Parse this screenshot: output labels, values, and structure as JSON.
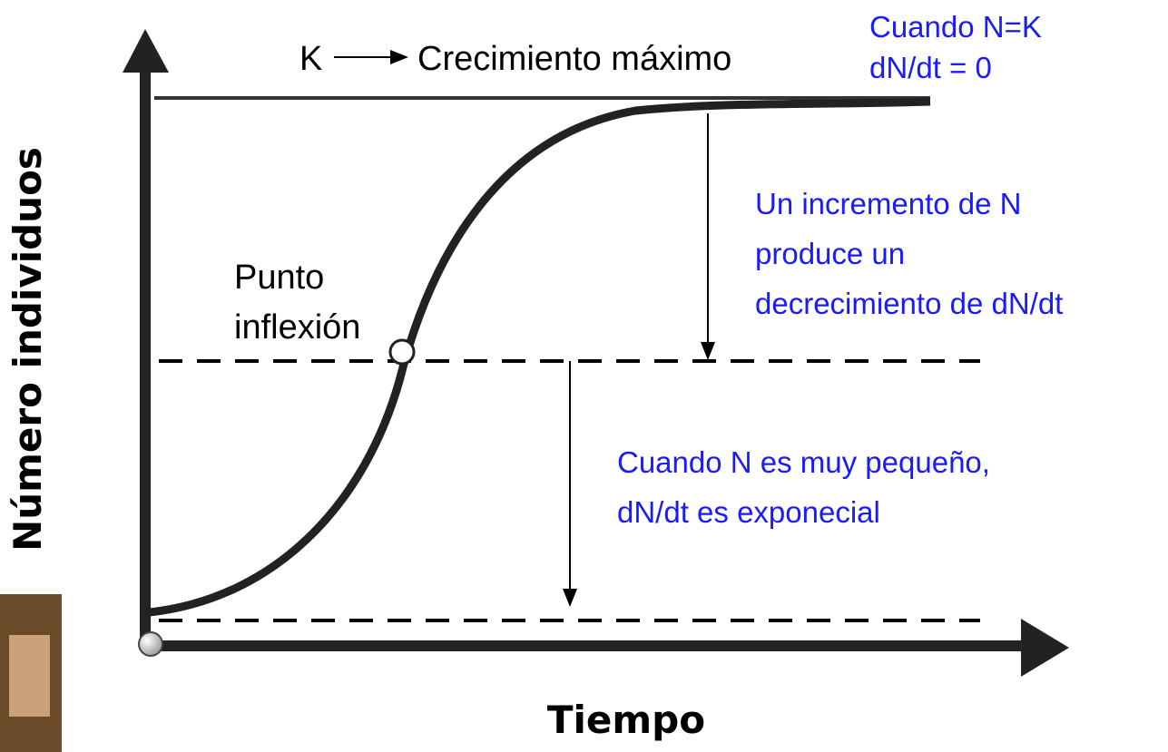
{
  "k_label": {
    "symbol": "K",
    "text": "Crecimiento máximo"
  },
  "k_note": [
    "Cuando N=K",
    "dN/dt = 0"
  ],
  "upper_note": [
    "Un incremento de N",
    "produce un",
    "decrecimiento de dN/dt"
  ],
  "inflection": [
    "Punto",
    "inflexión"
  ],
  "lower_note": [
    "Cuando N es muy pequeño,",
    "dN/dt es exponecial"
  ],
  "y_axis_label": "Número individuos",
  "x_axis_label": "Tiempo"
}
